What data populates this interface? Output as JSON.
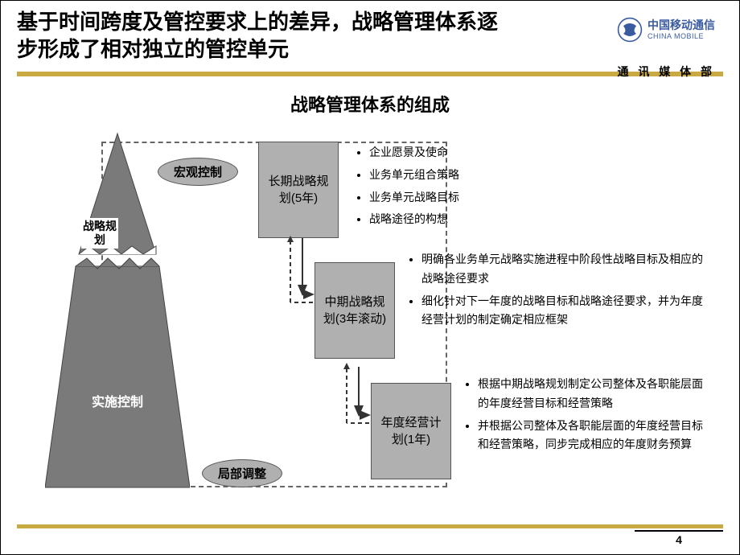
{
  "header": {
    "title": "基于时间跨度及管控要求上的差异，战略管理体系逐步形成了相对独立的管控单元",
    "logo_cn": "中国移动通信",
    "logo_en": "CHINA MOBILE",
    "dept": "通 讯 媒 体 部"
  },
  "subtitle": "战略管理体系的组成",
  "triangle": {
    "mid_label": "战略规划",
    "bottom_label": "实施控制"
  },
  "ovals": {
    "macro": "宏观控制",
    "local": "局部调整"
  },
  "boxes": {
    "long": "长期战略规划(5年)",
    "mid": "中期战略规划(3年滚动)",
    "annual": "年度经营计划(1年)"
  },
  "bullets": {
    "long": [
      "企业愿景及使命",
      "业务单元组合策略",
      "业务单元战略目标",
      "战略途径的构想"
    ],
    "mid": [
      "明确各业务单元战略实施进程中阶段性战略目标及相应的战略途径要求",
      "细化针对下一年度的战略目标和战略途径要求，并为年度经营计划的制定确定相应框架"
    ],
    "annual": [
      "根据中期战略规划制定公司整体及各职能层面的年度经营目标和经营策略",
      "并根据公司整体及各职能层面的年度经营目标和经营策略，同步完成相应的年度财务预算"
    ]
  },
  "colors": {
    "gold": "#c9a941",
    "box_fill": "#b0b0b0",
    "triangle_fill": "#7a7a7a",
    "dash": "#666666"
  },
  "page_number": "4"
}
